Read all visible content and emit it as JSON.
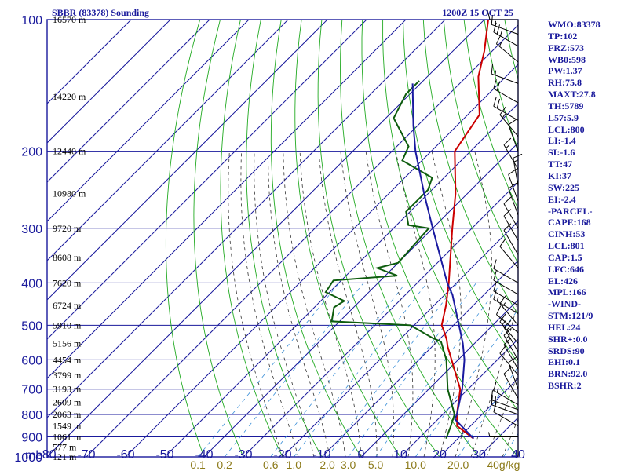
{
  "header": {
    "station": "SBBR (83378) Sounding",
    "datetime": "1200Z 15 OCT 25"
  },
  "indices": [
    "WMO:83378",
    "TP:102",
    "FRZ:573",
    "WB0:598",
    "PW:1.37",
    "RH:75.8",
    "MAXT:27.8",
    "TH:5789",
    "L57:5.9",
    "LCL:800",
    "LI:-1.4",
    "SI:-1.6",
    "TT:47",
    "KI:37",
    "SW:225",
    "EI:-2.4",
    "-PARCEL-",
    "CAPE:168",
    "CINH:53",
    "LCL:801",
    "CAP:1.5",
    "LFC:646",
    "EL:426",
    "MPL:166",
    "-WIND-",
    "STM:121/9",
    "HEL:24",
    "SHR+:0.0",
    "SRDS:90",
    "EHI:0.1",
    "BRN:92.0",
    "BSHR:2"
  ],
  "colors": {
    "frame": "#1a1a9c",
    "isotherm": "#1a1a9c",
    "dry_adiabat": "#22aa22",
    "moist_adiabat": "#333333",
    "mixing_ratio": "#3a8fd8",
    "temperature": "#cc0000",
    "dewpoint": "#0d5c0d",
    "parcel": "#1a1aa0",
    "wind": "#000000"
  },
  "chart_data": {
    "type": "skew-t",
    "title": "SBBR (83378) Sounding",
    "pressure_unit": "mb",
    "pressure_range": [
      1000,
      100
    ],
    "temperature_range": [
      -80,
      40
    ],
    "pressure_labels": [
      "100",
      "200",
      "300",
      "400",
      "500",
      "600",
      "700",
      "800",
      "900",
      "1000"
    ],
    "pressure_levels": [
      100,
      200,
      300,
      400,
      500,
      600,
      700,
      800,
      900,
      1000
    ],
    "temperature_labels": [
      "-80",
      "-70",
      "-60",
      "-50",
      "-40",
      "-30",
      "-20",
      "-10",
      "0",
      "10",
      "20",
      "30",
      "40"
    ],
    "temperature_ticks": [
      -80,
      -70,
      -60,
      -50,
      -40,
      -30,
      -20,
      -10,
      0,
      10,
      20,
      30,
      40
    ],
    "height_labels": [
      {
        "p": 100,
        "text": "16570 m"
      },
      {
        "p": 150,
        "text": "14220 m"
      },
      {
        "p": 200,
        "text": "12440 m"
      },
      {
        "p": 250,
        "text": "10980 m"
      },
      {
        "p": 300,
        "text": "9720 m"
      },
      {
        "p": 350,
        "text": "8608 m"
      },
      {
        "p": 400,
        "text": "7620 m"
      },
      {
        "p": 450,
        "text": "6724 m"
      },
      {
        "p": 500,
        "text": "5910 m"
      },
      {
        "p": 550,
        "text": "5156 m"
      },
      {
        "p": 600,
        "text": "4454 m"
      },
      {
        "p": 650,
        "text": "3799 m"
      },
      {
        "p": 700,
        "text": "3193 m"
      },
      {
        "p": 750,
        "text": "2609 m"
      },
      {
        "p": 800,
        "text": "2063 m"
      },
      {
        "p": 850,
        "text": "1549 m"
      },
      {
        "p": 900,
        "text": "1061 m"
      },
      {
        "p": 950,
        "text": "577 m"
      },
      {
        "p": 1000,
        "text": "121 m"
      }
    ],
    "mixing_ratio_labels": [
      "0.1",
      "0.2",
      "0.6",
      "1.0",
      "2.0",
      "3.0",
      "5.0",
      "10.0",
      "20.0",
      "40g/kg"
    ],
    "mixing_ratio_values": [
      0.1,
      0.2,
      0.6,
      1.0,
      2.0,
      3.0,
      5.0,
      10.0,
      20.0,
      40.0
    ],
    "temperature": [
      {
        "p": 908,
        "t": 24.0
      },
      {
        "p": 850,
        "t": 16.6
      },
      {
        "p": 800,
        "t": 13.6
      },
      {
        "p": 700,
        "t": 8.0
      },
      {
        "p": 560,
        "t": -6.0
      },
      {
        "p": 540,
        "t": -8.0
      },
      {
        "p": 520,
        "t": -10.4
      },
      {
        "p": 500,
        "t": -13.0
      },
      {
        "p": 462,
        "t": -16.0
      },
      {
        "p": 450,
        "t": -17.0
      },
      {
        "p": 400,
        "t": -22.0
      },
      {
        "p": 300,
        "t": -35.0
      },
      {
        "p": 250,
        "t": -43.0
      },
      {
        "p": 200,
        "t": -54.0
      },
      {
        "p": 165,
        "t": -57.0
      },
      {
        "p": 135,
        "t": -67.0
      },
      {
        "p": 118,
        "t": -72.0
      },
      {
        "p": 100,
        "t": -79.0
      }
    ],
    "dewpoint": [
      {
        "p": 908,
        "t": 17.0
      },
      {
        "p": 850,
        "t": 15.0
      },
      {
        "p": 800,
        "t": 13.0
      },
      {
        "p": 700,
        "t": 4.8
      },
      {
        "p": 600,
        "t": -3.0
      },
      {
        "p": 545,
        "t": -9.0
      },
      {
        "p": 535,
        "t": -12.0
      },
      {
        "p": 500,
        "t": -21.0
      },
      {
        "p": 490,
        "t": -42.0
      },
      {
        "p": 455,
        "t": -45.0
      },
      {
        "p": 440,
        "t": -44.0
      },
      {
        "p": 420,
        "t": -51.0
      },
      {
        "p": 395,
        "t": -52.0
      },
      {
        "p": 385,
        "t": -37.0
      },
      {
        "p": 370,
        "t": -44.0
      },
      {
        "p": 360,
        "t": -40.0
      },
      {
        "p": 300,
        "t": -41.0
      },
      {
        "p": 295,
        "t": -47.0
      },
      {
        "p": 275,
        "t": -51.0
      },
      {
        "p": 245,
        "t": -51.0
      },
      {
        "p": 230,
        "t": -53.0
      },
      {
        "p": 210,
        "t": -65.0
      },
      {
        "p": 195,
        "t": -67.0
      },
      {
        "p": 168,
        "t": -78.0
      },
      {
        "p": 148,
        "t": -81.0
      },
      {
        "p": 138,
        "t": -81.0
      }
    ],
    "parcel": [
      {
        "p": 908,
        "t": 24.0
      },
      {
        "p": 820,
        "t": 14.3
      },
      {
        "p": 800,
        "t": 13.6
      },
      {
        "p": 700,
        "t": 8.5
      },
      {
        "p": 600,
        "t": 1.6
      },
      {
        "p": 550,
        "t": -3.0
      },
      {
        "p": 500,
        "t": -8.6
      },
      {
        "p": 426,
        "t": -18.0
      },
      {
        "p": 400,
        "t": -22.4
      },
      {
        "p": 300,
        "t": -40.0
      },
      {
        "p": 250,
        "t": -51.0
      },
      {
        "p": 200,
        "t": -64.0
      },
      {
        "p": 175,
        "t": -71.0
      },
      {
        "p": 140,
        "t": -82.0
      }
    ],
    "wind_barbs": [
      {
        "p": 900,
        "dir": 270,
        "kt": 5
      },
      {
        "p": 850,
        "dir": 300,
        "kt": 10
      },
      {
        "p": 800,
        "dir": 290,
        "kt": 15
      },
      {
        "p": 780,
        "dir": 290,
        "kt": 15
      },
      {
        "p": 760,
        "dir": 300,
        "kt": 15
      },
      {
        "p": 735,
        "dir": 330,
        "kt": 10
      },
      {
        "p": 700,
        "dir": 340,
        "kt": 10
      },
      {
        "p": 650,
        "dir": 320,
        "kt": 10
      },
      {
        "p": 630,
        "dir": 330,
        "kt": 10
      },
      {
        "p": 600,
        "dir": 330,
        "kt": 15
      },
      {
        "p": 575,
        "dir": 330,
        "kt": 15
      },
      {
        "p": 550,
        "dir": 320,
        "kt": 15
      },
      {
        "p": 520,
        "dir": 310,
        "kt": 10
      },
      {
        "p": 500,
        "dir": 320,
        "kt": 15
      },
      {
        "p": 470,
        "dir": 300,
        "kt": 15
      },
      {
        "p": 450,
        "dir": 300,
        "kt": 10
      },
      {
        "p": 425,
        "dir": 300,
        "kt": 10
      },
      {
        "p": 400,
        "dir": 300,
        "kt": 10
      },
      {
        "p": 370,
        "dir": 320,
        "kt": 10
      },
      {
        "p": 345,
        "dir": 330,
        "kt": 10
      },
      {
        "p": 320,
        "dir": 330,
        "kt": 10
      },
      {
        "p": 300,
        "dir": 330,
        "kt": 10
      },
      {
        "p": 280,
        "dir": 340,
        "kt": 10
      },
      {
        "p": 260,
        "dir": 340,
        "kt": 10
      },
      {
        "p": 240,
        "dir": 350,
        "kt": 15
      },
      {
        "p": 220,
        "dir": 330,
        "kt": 15
      },
      {
        "p": 200,
        "dir": 340,
        "kt": 10
      },
      {
        "p": 185,
        "dir": 320,
        "kt": 15
      },
      {
        "p": 170,
        "dir": 300,
        "kt": 20
      },
      {
        "p": 155,
        "dir": 300,
        "kt": 20
      },
      {
        "p": 140,
        "dir": 290,
        "kt": 15
      },
      {
        "p": 125,
        "dir": 310,
        "kt": 15
      },
      {
        "p": 115,
        "dir": 300,
        "kt": 25
      },
      {
        "p": 108,
        "dir": 290,
        "kt": 15
      },
      {
        "p": 100,
        "dir": 270,
        "kt": 10
      }
    ]
  }
}
